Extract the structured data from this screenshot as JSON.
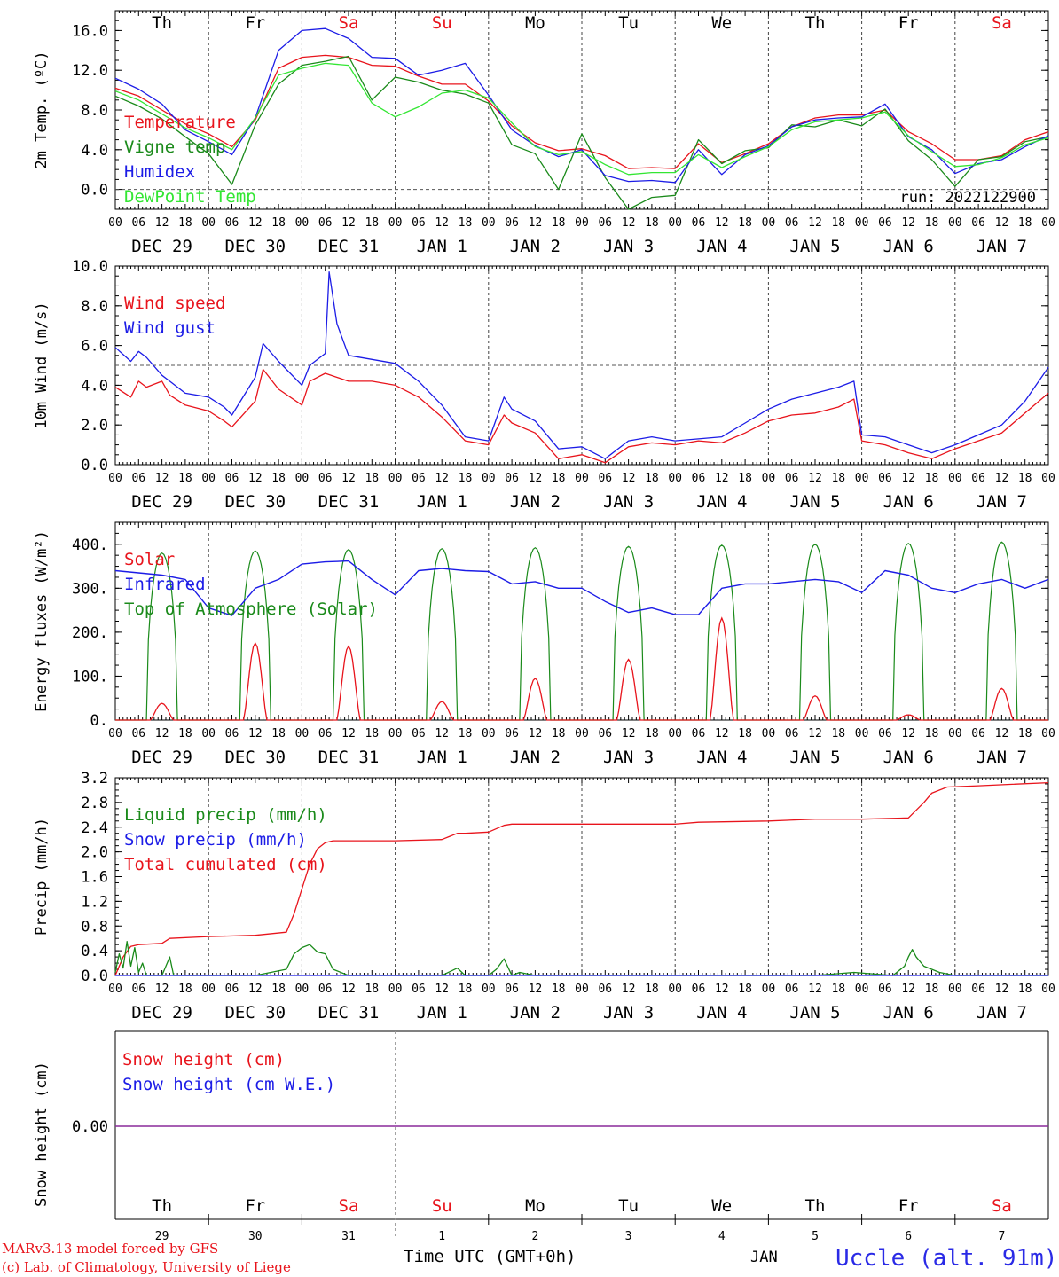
{
  "title_bar": "",
  "colors": {
    "red": "#e8141c",
    "green": "#1a8a1a",
    "blue": "#1c1ce6",
    "lightgreen": "#33e633",
    "purple": "#8a2a9a",
    "axis": "#000000",
    "grid": "#555555",
    "location": "#2a2ae6"
  },
  "days": {
    "weekday_labels": [
      "Th",
      "Fr",
      "Sa",
      "Su",
      "Mo",
      "Tu",
      "We",
      "Th",
      "Fr",
      "Sa"
    ],
    "weekend_flags": [
      false,
      false,
      true,
      true,
      false,
      false,
      false,
      false,
      false,
      true
    ],
    "date_labels": [
      "DEC 29",
      "DEC 30",
      "DEC 31",
      "JAN  1",
      "JAN  2",
      "JAN  3",
      "JAN  4",
      "JAN  5",
      "JAN  6",
      "JAN  7"
    ],
    "hour_labels": [
      "00",
      "06",
      "12",
      "18"
    ],
    "final_hour_label": "00",
    "day_numbers": [
      "29",
      "30",
      "31",
      "1",
      "2",
      "3",
      "4",
      "5",
      "6",
      "7"
    ]
  },
  "chart_data": [
    {
      "type": "line",
      "id": "temperature",
      "ylabel": "2m Temp. (ºC)",
      "ylim": [
        -2,
        18
      ],
      "yticks": [
        "0.0",
        "4.0",
        "8.0",
        "12.0",
        "16.0"
      ],
      "ytick_values": [
        0,
        4,
        8,
        12,
        16
      ],
      "reference_line": 0,
      "annotation": "run: 2022122900",
      "legend": [
        "Temperature",
        "Vigne temp",
        "Humidex",
        "DewPoint Temp"
      ],
      "series": [
        {
          "name": "Temperature",
          "color": "red",
          "x": [
            0,
            6,
            12,
            18,
            24,
            30,
            36,
            42,
            48,
            54,
            60,
            66,
            72,
            78,
            84,
            90,
            96,
            102,
            108,
            114,
            120,
            126,
            132,
            138,
            144,
            150,
            156,
            162,
            168,
            174,
            180,
            186,
            192,
            198,
            204,
            210,
            216,
            222,
            228,
            234,
            240
          ],
          "values": [
            10.2,
            9.4,
            8.0,
            6.6,
            5.6,
            4.3,
            7.0,
            12.2,
            13.3,
            13.5,
            13.3,
            12.5,
            12.4,
            11.4,
            10.6,
            10.6,
            8.9,
            6.4,
            4.7,
            3.9,
            4.1,
            3.4,
            2.1,
            2.2,
            2.1,
            4.6,
            2.7,
            3.6,
            4.6,
            6.3,
            7.2,
            7.5,
            7.5,
            8.0,
            5.8,
            4.6,
            3.0,
            3.0,
            3.4,
            5.0,
            5.8
          ]
        },
        {
          "name": "Vigne temp",
          "color": "green",
          "x": [
            0,
            6,
            12,
            18,
            24,
            30,
            36,
            42,
            48,
            54,
            60,
            66,
            72,
            78,
            84,
            90,
            96,
            102,
            108,
            114,
            120,
            126,
            132,
            138,
            144,
            150,
            156,
            162,
            168,
            174,
            180,
            186,
            192,
            198,
            204,
            210,
            216,
            222,
            228,
            234,
            240
          ],
          "values": [
            9.4,
            8.4,
            7.1,
            5.3,
            3.6,
            0.5,
            6.5,
            10.6,
            12.5,
            12.9,
            13.4,
            9.0,
            11.3,
            10.8,
            10.0,
            9.6,
            8.7,
            4.5,
            3.6,
            0.0,
            5.6,
            1.2,
            -2.0,
            -0.8,
            -0.6,
            5.0,
            2.6,
            3.9,
            4.2,
            6.5,
            6.3,
            7.0,
            6.4,
            8.1,
            4.9,
            3.0,
            0.3,
            3.0,
            3.3,
            4.8,
            5.3
          ]
        },
        {
          "name": "Humidex",
          "color": "blue",
          "x": [
            0,
            6,
            12,
            18,
            24,
            30,
            36,
            42,
            48,
            54,
            60,
            66,
            72,
            78,
            84,
            90,
            96,
            102,
            108,
            114,
            120,
            126,
            132,
            138,
            144,
            150,
            156,
            162,
            168,
            174,
            180,
            186,
            192,
            198,
            204,
            210,
            216,
            222,
            228,
            234,
            240
          ],
          "values": [
            11.2,
            10.1,
            8.6,
            6.0,
            4.8,
            3.5,
            7.2,
            14.0,
            16.0,
            16.2,
            15.2,
            13.3,
            13.2,
            11.5,
            12.0,
            12.7,
            9.5,
            6.0,
            4.4,
            3.3,
            4.0,
            1.4,
            0.8,
            0.9,
            0.7,
            4.0,
            1.5,
            3.5,
            4.4,
            6.3,
            7.0,
            7.2,
            7.3,
            8.6,
            5.3,
            4.0,
            1.6,
            2.6,
            3.0,
            4.3,
            5.4
          ]
        },
        {
          "name": "DewPoint Temp",
          "color": "lightgreen",
          "x": [
            0,
            6,
            12,
            18,
            24,
            30,
            36,
            42,
            48,
            54,
            60,
            66,
            72,
            78,
            84,
            90,
            96,
            102,
            108,
            114,
            120,
            126,
            132,
            138,
            144,
            150,
            156,
            162,
            168,
            174,
            180,
            186,
            192,
            198,
            204,
            210,
            216,
            222,
            228,
            234,
            240
          ],
          "values": [
            9.9,
            9.0,
            7.6,
            6.2,
            5.2,
            4.0,
            7.2,
            11.5,
            12.2,
            12.7,
            12.5,
            8.7,
            7.3,
            8.3,
            9.7,
            10.0,
            9.2,
            6.7,
            4.3,
            3.5,
            3.8,
            2.5,
            1.5,
            1.7,
            1.7,
            3.5,
            2.2,
            3.3,
            4.3,
            6.0,
            6.8,
            7.0,
            7.2,
            7.8,
            5.4,
            3.8,
            2.3,
            2.5,
            3.2,
            4.5,
            5.2
          ]
        }
      ]
    },
    {
      "type": "line",
      "id": "wind",
      "ylabel": "10m Wind (m/s)",
      "ylim": [
        0,
        10
      ],
      "yticks": [
        "0.0",
        "2.0",
        "4.0",
        "6.0",
        "8.0",
        "10.0"
      ],
      "ytick_values": [
        0,
        2,
        4,
        6,
        8,
        10
      ],
      "reference_line": 5,
      "legend": [
        "Wind speed",
        "Wind gust"
      ],
      "series": [
        {
          "name": "Wind speed",
          "color": "red",
          "x": [
            0,
            4,
            6,
            8,
            12,
            14,
            18,
            24,
            28,
            30,
            36,
            38,
            42,
            48,
            50,
            54,
            60,
            66,
            72,
            78,
            84,
            90,
            96,
            100,
            102,
            108,
            114,
            120,
            126,
            132,
            138,
            144,
            150,
            156,
            162,
            168,
            174,
            180,
            186,
            190,
            192,
            198,
            204,
            210,
            216,
            222,
            228,
            234,
            240
          ],
          "values": [
            3.9,
            3.4,
            4.2,
            3.9,
            4.2,
            3.5,
            3.0,
            2.7,
            2.2,
            1.9,
            3.2,
            4.8,
            3.8,
            3.0,
            4.2,
            4.6,
            4.2,
            4.2,
            4.0,
            3.4,
            2.4,
            1.2,
            1.0,
            2.5,
            2.1,
            1.6,
            0.3,
            0.5,
            0.1,
            0.9,
            1.1,
            1.0,
            1.2,
            1.1,
            1.6,
            2.2,
            2.5,
            2.6,
            2.9,
            3.3,
            1.2,
            1.0,
            0.6,
            0.3,
            0.8,
            1.2,
            1.6,
            2.6,
            3.6
          ]
        },
        {
          "name": "Wind gust",
          "color": "blue",
          "x": [
            0,
            4,
            6,
            8,
            12,
            14,
            18,
            24,
            28,
            30,
            36,
            38,
            42,
            48,
            50,
            54,
            55,
            57,
            60,
            66,
            72,
            78,
            84,
            90,
            96,
            100,
            102,
            108,
            114,
            120,
            126,
            132,
            138,
            144,
            150,
            156,
            162,
            168,
            174,
            180,
            186,
            190,
            192,
            198,
            204,
            210,
            216,
            222,
            228,
            234,
            240
          ],
          "values": [
            5.9,
            5.2,
            5.7,
            5.4,
            4.5,
            4.2,
            3.6,
            3.4,
            2.9,
            2.5,
            4.4,
            6.1,
            5.2,
            4.0,
            5.0,
            5.6,
            9.7,
            7.1,
            5.5,
            5.3,
            5.1,
            4.2,
            3.0,
            1.4,
            1.2,
            3.4,
            2.8,
            2.2,
            0.8,
            0.9,
            0.3,
            1.2,
            1.4,
            1.2,
            1.3,
            1.4,
            2.1,
            2.8,
            3.3,
            3.6,
            3.9,
            4.2,
            1.5,
            1.4,
            1.0,
            0.6,
            1.0,
            1.5,
            2.0,
            3.2,
            4.9
          ]
        }
      ]
    },
    {
      "type": "line",
      "id": "energy",
      "ylabel": "Energy fluxes (W/m²)",
      "ylim": [
        0,
        450
      ],
      "yticks": [
        "0.",
        "100.",
        "200.",
        "300.",
        "400."
      ],
      "ytick_values": [
        0,
        100,
        200,
        300,
        400
      ],
      "legend": [
        "Solar",
        "Infrared",
        "Top of Atmosphere (Solar)"
      ],
      "toa_peaks": [
        380,
        385,
        388,
        390,
        392,
        395,
        398,
        400,
        402,
        405
      ],
      "solar_peaks": [
        38,
        175,
        168,
        42,
        95,
        138,
        232,
        55,
        12,
        72
      ],
      "infrared": {
        "x": [
          0,
          6,
          12,
          18,
          24,
          30,
          36,
          42,
          48,
          54,
          60,
          66,
          72,
          78,
          84,
          90,
          96,
          102,
          108,
          114,
          120,
          126,
          132,
          138,
          144,
          150,
          156,
          162,
          168,
          174,
          180,
          186,
          192,
          198,
          204,
          210,
          216,
          222,
          228,
          234,
          240
        ],
        "values": [
          340,
          335,
          330,
          320,
          255,
          238,
          300,
          320,
          355,
          360,
          362,
          320,
          285,
          340,
          345,
          340,
          338,
          310,
          315,
          300,
          300,
          270,
          245,
          255,
          240,
          240,
          300,
          310,
          310,
          315,
          320,
          315,
          290,
          340,
          330,
          300,
          290,
          310,
          320,
          300,
          320
        ]
      },
      "series": [
        {
          "name": "Solar",
          "color": "red"
        },
        {
          "name": "Infrared",
          "color": "blue"
        },
        {
          "name": "Top of Atmosphere (Solar)",
          "color": "green"
        }
      ]
    },
    {
      "type": "line",
      "id": "precip",
      "ylabel": "Precip (mm/h)",
      "ylim": [
        0,
        3.2
      ],
      "yticks": [
        "0.0",
        "0.4",
        "0.8",
        "1.2",
        "1.6",
        "2.0",
        "2.4",
        "2.8",
        "3.2"
      ],
      "ytick_values": [
        0,
        0.4,
        0.8,
        1.2,
        1.6,
        2.0,
        2.4,
        2.8,
        3.2
      ],
      "legend": [
        "Liquid precip (mm/h)",
        "Snow precip (mm/h)",
        "Total cumulated (cm)"
      ],
      "series": [
        {
          "name": "Total cumulated (cm)",
          "color": "red",
          "x": [
            0,
            2,
            4,
            6,
            12,
            14,
            24,
            36,
            44,
            46,
            48,
            50,
            52,
            54,
            56,
            60,
            72,
            84,
            88,
            90,
            96,
            100,
            102,
            108,
            144,
            150,
            168,
            180,
            192,
            204,
            208,
            210,
            214,
            222,
            240
          ],
          "values": [
            0,
            0.3,
            0.47,
            0.5,
            0.52,
            0.6,
            0.63,
            0.65,
            0.7,
            1.0,
            1.4,
            1.8,
            2.05,
            2.15,
            2.18,
            2.18,
            2.18,
            2.2,
            2.3,
            2.3,
            2.32,
            2.43,
            2.45,
            2.45,
            2.45,
            2.48,
            2.5,
            2.53,
            2.53,
            2.55,
            2.8,
            2.95,
            3.05,
            3.07,
            3.12
          ]
        },
        {
          "name": "Liquid precip (mm/h)",
          "color": "green",
          "x": [
            0,
            1,
            2,
            3,
            4,
            5,
            6,
            7,
            8,
            12,
            14,
            15,
            16,
            20,
            24,
            36,
            44,
            46,
            48,
            50,
            52,
            54,
            56,
            60,
            84,
            88,
            90,
            96,
            98,
            100,
            102,
            104,
            108,
            180,
            190,
            200,
            203,
            204,
            205,
            206,
            208,
            212,
            216,
            240
          ],
          "values": [
            0.05,
            0.35,
            0.12,
            0.55,
            0.15,
            0.45,
            0.05,
            0.2,
            0.0,
            0.0,
            0.3,
            0.0,
            0.0,
            0.0,
            0.0,
            0.0,
            0.1,
            0.35,
            0.45,
            0.5,
            0.38,
            0.35,
            0.1,
            0.0,
            0.0,
            0.12,
            0.0,
            0.0,
            0.1,
            0.27,
            0.0,
            0.05,
            0.0,
            0.0,
            0.05,
            0.0,
            0.15,
            0.3,
            0.42,
            0.3,
            0.15,
            0.05,
            0.0,
            0.0
          ]
        },
        {
          "name": "Snow precip (mm/h)",
          "color": "blue",
          "x": [
            0,
            240
          ],
          "values": [
            0,
            0
          ]
        }
      ]
    },
    {
      "type": "line",
      "id": "snow",
      "ylabel": "Snow height (cm)",
      "yticks": [
        "0.00"
      ],
      "ytick_values": [
        0
      ],
      "legend": [
        "Snow height (cm)",
        "Snow height (cm W.E.)"
      ],
      "series": [
        {
          "name": "Snow height (cm)",
          "color": "red",
          "x": [
            0,
            240
          ],
          "values": [
            0,
            0
          ]
        },
        {
          "name": "Snow height (cm W.E.)",
          "color": "blue",
          "x": [
            0,
            240
          ],
          "values": [
            0,
            0
          ]
        }
      ]
    }
  ],
  "footer": {
    "credit_line_1": "MARv3.13 model forced by GFS",
    "credit_line_2": "(c) Lab. of Climatology, University of Liege",
    "time_label": "Time UTC (GMT+0h)",
    "month_label": "JAN",
    "location": "Uccle (alt. 91m)"
  }
}
